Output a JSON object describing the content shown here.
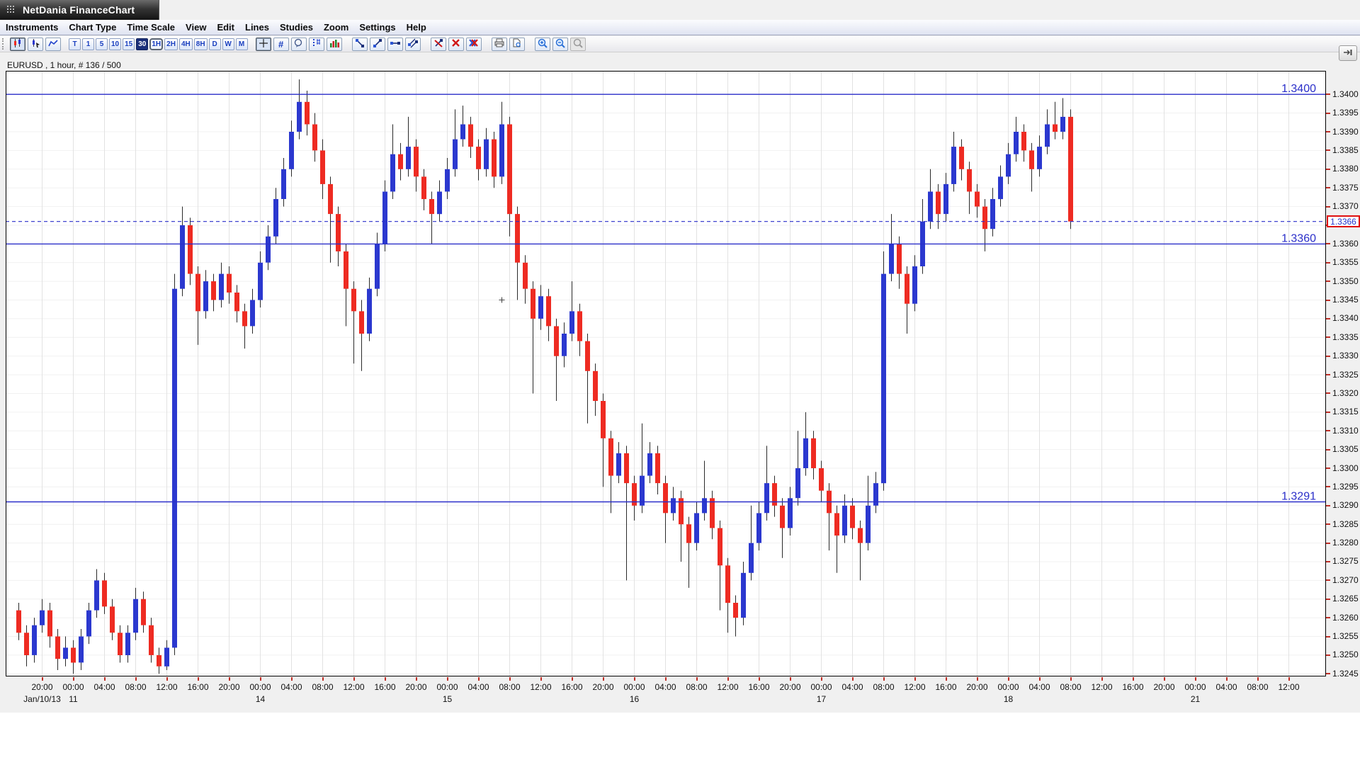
{
  "window": {
    "title": "NetDania FinanceChart"
  },
  "menu": {
    "items": [
      "Instruments",
      "Chart Type",
      "Time Scale",
      "View",
      "Edit",
      "Lines",
      "Studies",
      "Zoom",
      "Settings",
      "Help"
    ]
  },
  "toolbar": {
    "chart_type_icons": [
      "candlestick-chart",
      "ohlc-pointer",
      "line-chart"
    ],
    "active_chart_type": "candlestick-chart",
    "timeframes": [
      "T",
      "1",
      "5",
      "10",
      "15",
      "30",
      "1H",
      "2H",
      "4H",
      "8H",
      "D",
      "W",
      "M"
    ],
    "selected_timeframe": "1H",
    "highlighted_timeframe": "30",
    "tool_icons": [
      "crosshair",
      "hash-grid",
      "balloon",
      "tick-marker",
      "volume",
      "trendline-down",
      "trendline-up",
      "trendline-horizontal",
      "trendline-channel",
      "erase-trendline",
      "delete-line",
      "delete-all-lines",
      "print",
      "print-preview",
      "zoom-in",
      "zoom-out",
      "zoom-off"
    ],
    "hash_glyph": "#"
  },
  "chart_header": {
    "label": "EURUSD , 1 hour, # 136 / 500"
  },
  "chart_data": {
    "type": "candlestick",
    "symbol": "EURUSD",
    "interval": "1 hour",
    "bars_displayed": 136,
    "bars_loaded": 500,
    "ylim": [
      1.32443,
      1.34063
    ],
    "y_axis": {
      "min": 1.3245,
      "max": 1.34,
      "tick_step": 0.0005,
      "decimals": 4
    },
    "x_labels": [
      {
        "t": "20:00",
        "d": "Jan/10/13"
      },
      {
        "t": "00:00",
        "d": "11"
      },
      {
        "t": "04:00"
      },
      {
        "t": "08:00"
      },
      {
        "t": "12:00"
      },
      {
        "t": "16:00"
      },
      {
        "t": "20:00"
      },
      {
        "t": "00:00",
        "d": "14"
      },
      {
        "t": "04:00"
      },
      {
        "t": "08:00"
      },
      {
        "t": "12:00"
      },
      {
        "t": "16:00"
      },
      {
        "t": "20:00"
      },
      {
        "t": "00:00",
        "d": "15"
      },
      {
        "t": "04:00"
      },
      {
        "t": "08:00"
      },
      {
        "t": "12:00"
      },
      {
        "t": "16:00"
      },
      {
        "t": "20:00"
      },
      {
        "t": "00:00",
        "d": "16"
      },
      {
        "t": "04:00"
      },
      {
        "t": "08:00"
      },
      {
        "t": "12:00"
      },
      {
        "t": "16:00"
      },
      {
        "t": "20:00"
      },
      {
        "t": "00:00",
        "d": "17"
      },
      {
        "t": "04:00"
      },
      {
        "t": "08:00"
      },
      {
        "t": "12:00"
      },
      {
        "t": "16:00"
      },
      {
        "t": "20:00"
      },
      {
        "t": "00:00",
        "d": "18"
      },
      {
        "t": "04:00"
      },
      {
        "t": "08:00"
      },
      {
        "t": "12:00"
      },
      {
        "t": "16:00"
      },
      {
        "t": "20:00"
      },
      {
        "t": "00:00",
        "d": "21"
      },
      {
        "t": "04:00"
      },
      {
        "t": "08:00"
      },
      {
        "t": "12:00"
      }
    ],
    "horizontal_lines": [
      {
        "value": 1.34,
        "label": "1.3400"
      },
      {
        "value": 1.336,
        "label": "1.3360"
      },
      {
        "value": 1.3291,
        "label": "1.3291"
      }
    ],
    "current_price": {
      "value": 1.3366,
      "label": "1.3366",
      "line_style": "dashed"
    },
    "marker": {
      "slot": 62,
      "price": 1.3345
    },
    "colors": {
      "up": "#2b38cf",
      "down": "#ee2b22",
      "wick": "#2a2a2a",
      "line": "#2a2ec9",
      "grid_v": "#e2e2e2",
      "grid_h": "#f1f1f1",
      "axis_tick": "#c03028"
    },
    "candles": [
      [
        1.3262,
        1.3264,
        1.3254,
        1.3256
      ],
      [
        1.3256,
        1.3258,
        1.3247,
        1.325
      ],
      [
        1.325,
        1.326,
        1.3248,
        1.3258
      ],
      [
        1.3258,
        1.3265,
        1.3256,
        1.3262
      ],
      [
        1.3262,
        1.3264,
        1.3252,
        1.3255
      ],
      [
        1.3255,
        1.3257,
        1.3246,
        1.3249
      ],
      [
        1.3249,
        1.3255,
        1.3247,
        1.3252
      ],
      [
        1.3252,
        1.3254,
        1.3245,
        1.3248
      ],
      [
        1.3248,
        1.3257,
        1.3246,
        1.3255
      ],
      [
        1.3255,
        1.3264,
        1.3253,
        1.3262
      ],
      [
        1.3262,
        1.3273,
        1.326,
        1.327
      ],
      [
        1.327,
        1.3272,
        1.3261,
        1.3263
      ],
      [
        1.3263,
        1.3265,
        1.3254,
        1.3256
      ],
      [
        1.3256,
        1.3258,
        1.3248,
        1.325
      ],
      [
        1.325,
        1.3258,
        1.3248,
        1.3256
      ],
      [
        1.3256,
        1.3268,
        1.3254,
        1.3265
      ],
      [
        1.3265,
        1.3267,
        1.3256,
        1.3258
      ],
      [
        1.3258,
        1.326,
        1.3248,
        1.325
      ],
      [
        1.325,
        1.3252,
        1.3245,
        1.3247
      ],
      [
        1.3247,
        1.3254,
        1.3246,
        1.3252
      ],
      [
        1.3252,
        1.3352,
        1.325,
        1.3348
      ],
      [
        1.3348,
        1.337,
        1.3346,
        1.3365
      ],
      [
        1.3365,
        1.3367,
        1.3349,
        1.3352
      ],
      [
        1.3352,
        1.3354,
        1.3333,
        1.3342
      ],
      [
        1.3342,
        1.3353,
        1.334,
        1.335
      ],
      [
        1.335,
        1.3352,
        1.3342,
        1.3345
      ],
      [
        1.3345,
        1.3355,
        1.3343,
        1.3352
      ],
      [
        1.3352,
        1.3354,
        1.3344,
        1.3347
      ],
      [
        1.3347,
        1.3349,
        1.3339,
        1.3342
      ],
      [
        1.3342,
        1.3344,
        1.3332,
        1.3338
      ],
      [
        1.3338,
        1.3348,
        1.3336,
        1.3345
      ],
      [
        1.3345,
        1.3358,
        1.3343,
        1.3355
      ],
      [
        1.3355,
        1.3365,
        1.3353,
        1.3362
      ],
      [
        1.3362,
        1.3375,
        1.336,
        1.3372
      ],
      [
        1.3372,
        1.3383,
        1.337,
        1.338
      ],
      [
        1.338,
        1.3393,
        1.3378,
        1.339
      ],
      [
        1.339,
        1.3404,
        1.3388,
        1.3398
      ],
      [
        1.3398,
        1.3401,
        1.3389,
        1.3392
      ],
      [
        1.3392,
        1.3395,
        1.3382,
        1.3385
      ],
      [
        1.3385,
        1.3388,
        1.3372,
        1.3376
      ],
      [
        1.3376,
        1.3378,
        1.3355,
        1.3368
      ],
      [
        1.3368,
        1.337,
        1.3354,
        1.3358
      ],
      [
        1.3358,
        1.336,
        1.3338,
        1.3348
      ],
      [
        1.3348,
        1.335,
        1.3328,
        1.3342
      ],
      [
        1.3342,
        1.3345,
        1.3326,
        1.3336
      ],
      [
        1.3336,
        1.3351,
        1.3334,
        1.3348
      ],
      [
        1.3348,
        1.3363,
        1.3346,
        1.336
      ],
      [
        1.336,
        1.3377,
        1.3358,
        1.3374
      ],
      [
        1.3374,
        1.3392,
        1.3372,
        1.3384
      ],
      [
        1.3384,
        1.3387,
        1.3377,
        1.338
      ],
      [
        1.338,
        1.3394,
        1.3378,
        1.3386
      ],
      [
        1.3386,
        1.3388,
        1.3374,
        1.3378
      ],
      [
        1.3378,
        1.338,
        1.3369,
        1.3372
      ],
      [
        1.3372,
        1.3374,
        1.336,
        1.3368
      ],
      [
        1.3368,
        1.3377,
        1.3366,
        1.3374
      ],
      [
        1.3374,
        1.3383,
        1.3372,
        1.338
      ],
      [
        1.338,
        1.3396,
        1.3378,
        1.3388
      ],
      [
        1.3388,
        1.3397,
        1.3386,
        1.3392
      ],
      [
        1.3392,
        1.3394,
        1.3383,
        1.3386
      ],
      [
        1.3386,
        1.3388,
        1.3377,
        1.338
      ],
      [
        1.338,
        1.3391,
        1.3378,
        1.3388
      ],
      [
        1.3388,
        1.339,
        1.3375,
        1.3378
      ],
      [
        1.3378,
        1.3398,
        1.3376,
        1.3392
      ],
      [
        1.3392,
        1.3394,
        1.3362,
        1.3368
      ],
      [
        1.3368,
        1.337,
        1.3345,
        1.3355
      ],
      [
        1.3355,
        1.3357,
        1.3344,
        1.3348
      ],
      [
        1.3348,
        1.335,
        1.332,
        1.334
      ],
      [
        1.334,
        1.3349,
        1.3337,
        1.3346
      ],
      [
        1.3346,
        1.3348,
        1.3334,
        1.3338
      ],
      [
        1.3338,
        1.334,
        1.3318,
        1.333
      ],
      [
        1.333,
        1.3339,
        1.3327,
        1.3336
      ],
      [
        1.3336,
        1.335,
        1.3334,
        1.3342
      ],
      [
        1.3342,
        1.3344,
        1.333,
        1.3334
      ],
      [
        1.3334,
        1.3336,
        1.3312,
        1.3326
      ],
      [
        1.3326,
        1.3328,
        1.3314,
        1.3318
      ],
      [
        1.3318,
        1.332,
        1.3295,
        1.3308
      ],
      [
        1.3308,
        1.331,
        1.3288,
        1.3298
      ],
      [
        1.3298,
        1.3307,
        1.3296,
        1.3304
      ],
      [
        1.3304,
        1.3306,
        1.327,
        1.3296
      ],
      [
        1.3296,
        1.3298,
        1.3286,
        1.329
      ],
      [
        1.329,
        1.3312,
        1.3288,
        1.3298
      ],
      [
        1.3298,
        1.3307,
        1.3296,
        1.3304
      ],
      [
        1.3304,
        1.3306,
        1.3293,
        1.3296
      ],
      [
        1.3296,
        1.3298,
        1.328,
        1.3288
      ],
      [
        1.3288,
        1.3295,
        1.3286,
        1.3292
      ],
      [
        1.3292,
        1.3294,
        1.3275,
        1.3285
      ],
      [
        1.3285,
        1.3287,
        1.3268,
        1.328
      ],
      [
        1.328,
        1.3291,
        1.3278,
        1.3288
      ],
      [
        1.3288,
        1.3302,
        1.3286,
        1.3292
      ],
      [
        1.3292,
        1.3294,
        1.3281,
        1.3284
      ],
      [
        1.3284,
        1.3286,
        1.3262,
        1.3274
      ],
      [
        1.3274,
        1.3276,
        1.3256,
        1.3264
      ],
      [
        1.3264,
        1.3266,
        1.3255,
        1.326
      ],
      [
        1.326,
        1.3275,
        1.3258,
        1.3272
      ],
      [
        1.3272,
        1.329,
        1.327,
        1.328
      ],
      [
        1.328,
        1.3291,
        1.3278,
        1.3288
      ],
      [
        1.3288,
        1.3306,
        1.3286,
        1.3296
      ],
      [
        1.3296,
        1.3298,
        1.3287,
        1.329
      ],
      [
        1.329,
        1.3292,
        1.3276,
        1.3284
      ],
      [
        1.3284,
        1.3295,
        1.3282,
        1.3292
      ],
      [
        1.3292,
        1.331,
        1.329,
        1.33
      ],
      [
        1.33,
        1.3315,
        1.3298,
        1.3308
      ],
      [
        1.3308,
        1.331,
        1.3297,
        1.33
      ],
      [
        1.33,
        1.3302,
        1.3291,
        1.3294
      ],
      [
        1.3294,
        1.3296,
        1.3278,
        1.3288
      ],
      [
        1.3288,
        1.329,
        1.3272,
        1.3282
      ],
      [
        1.3282,
        1.3293,
        1.328,
        1.329
      ],
      [
        1.329,
        1.3292,
        1.3281,
        1.3284
      ],
      [
        1.3284,
        1.3286,
        1.327,
        1.328
      ],
      [
        1.328,
        1.3298,
        1.3278,
        1.329
      ],
      [
        1.329,
        1.3299,
        1.3288,
        1.3296
      ],
      [
        1.3296,
        1.3358,
        1.3294,
        1.3352
      ],
      [
        1.3352,
        1.3368,
        1.335,
        1.336
      ],
      [
        1.336,
        1.3362,
        1.3348,
        1.3352
      ],
      [
        1.3352,
        1.3354,
        1.3336,
        1.3344
      ],
      [
        1.3344,
        1.3357,
        1.3342,
        1.3354
      ],
      [
        1.3354,
        1.3372,
        1.3352,
        1.3366
      ],
      [
        1.3366,
        1.338,
        1.3364,
        1.3374
      ],
      [
        1.3374,
        1.3376,
        1.3364,
        1.3368
      ],
      [
        1.3368,
        1.3379,
        1.3366,
        1.3376
      ],
      [
        1.3376,
        1.339,
        1.3374,
        1.3386
      ],
      [
        1.3386,
        1.3388,
        1.3377,
        1.338
      ],
      [
        1.338,
        1.3382,
        1.3368,
        1.3374
      ],
      [
        1.3374,
        1.3376,
        1.3367,
        1.337
      ],
      [
        1.337,
        1.3372,
        1.3358,
        1.3364
      ],
      [
        1.3364,
        1.3375,
        1.3362,
        1.3372
      ],
      [
        1.3372,
        1.3381,
        1.337,
        1.3378
      ],
      [
        1.3378,
        1.3387,
        1.3376,
        1.3384
      ],
      [
        1.3384,
        1.3394,
        1.3382,
        1.339
      ],
      [
        1.339,
        1.3392,
        1.3382,
        1.3385
      ],
      [
        1.3385,
        1.3387,
        1.3374,
        1.338
      ],
      [
        1.338,
        1.3389,
        1.3378,
        1.3386
      ],
      [
        1.3386,
        1.3396,
        1.3384,
        1.3392
      ],
      [
        1.3392,
        1.3398,
        1.3388,
        1.339
      ],
      [
        1.339,
        1.3399,
        1.3388,
        1.3394
      ],
      [
        1.3394,
        1.3396,
        1.3364,
        1.3366
      ]
    ]
  }
}
